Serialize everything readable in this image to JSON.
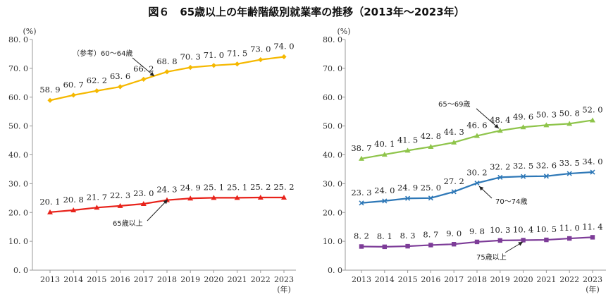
{
  "title": "図６　65歳以上の年齢階級別就業率の推移（2013年～2023年）",
  "colors": {
    "s60_64": "#f5b800",
    "s65plus": "#e8221a",
    "s65_69": "#8ec44a",
    "s70_74": "#2e78b7",
    "s75plus": "#7d3c98",
    "axis": "#999999"
  },
  "chart_data": [
    {
      "type": "line",
      "unit_label": "(%)",
      "x_unit_label": "(年)",
      "categories": [
        "2013",
        "2014",
        "2015",
        "2016",
        "2017",
        "2018",
        "2019",
        "2020",
        "2021",
        "2022",
        "2023"
      ],
      "ylim": [
        0,
        80
      ],
      "yticks": [
        "0. 0",
        "10. 0",
        "20. 0",
        "30. 0",
        "40. 0",
        "50. 0",
        "60. 0",
        "70. 0",
        "80. 0"
      ],
      "series": [
        {
          "name": "（参考）60～64歳",
          "color_key": "s60_64",
          "marker": "diamond",
          "values": [
            58.9,
            60.7,
            62.2,
            63.6,
            66.2,
            68.8,
            70.3,
            71.0,
            71.5,
            73.0,
            74.0
          ],
          "labels": [
            "58. 9",
            "60. 7",
            "62. 2",
            "63. 6",
            "66. 2",
            "68. 8",
            "70. 3",
            "71. 0",
            "71. 5",
            "73. 0",
            "74. 0"
          ]
        },
        {
          "name": "65歳以上",
          "color_key": "s65plus",
          "marker": "triangle",
          "values": [
            20.1,
            20.8,
            21.7,
            22.3,
            23.0,
            24.3,
            24.9,
            25.1,
            25.1,
            25.2,
            25.2
          ],
          "labels": [
            "20. 1",
            "20. 8",
            "21. 7",
            "22. 3",
            "23. 0",
            "24. 3",
            "24. 9",
            "25. 1",
            "25. 1",
            "25. 2",
            "25. 2"
          ]
        }
      ]
    },
    {
      "type": "line",
      "unit_label": "(%)",
      "x_unit_label": "(年)",
      "categories": [
        "2013",
        "2014",
        "2015",
        "2016",
        "2017",
        "2018",
        "2019",
        "2020",
        "2021",
        "2022",
        "2023"
      ],
      "ylim": [
        0,
        80
      ],
      "yticks": [
        "0. 0",
        "10. 0",
        "20. 0",
        "30. 0",
        "40. 0",
        "50. 0",
        "60. 0",
        "70. 0",
        "80. 0"
      ],
      "series": [
        {
          "name": "65～69歳",
          "color_key": "s65_69",
          "marker": "triangle",
          "values": [
            38.7,
            40.1,
            41.5,
            42.8,
            44.3,
            46.6,
            48.4,
            49.6,
            50.3,
            50.8,
            52.0
          ],
          "labels": [
            "38. 7",
            "40. 1",
            "41. 5",
            "42. 8",
            "44. 3",
            "46. 6",
            "48. 4",
            "49. 6",
            "50. 3",
            "50. 8",
            "52. 0"
          ]
        },
        {
          "name": "70～74歳",
          "color_key": "s70_74",
          "marker": "x",
          "values": [
            23.3,
            24.0,
            24.9,
            25.0,
            27.2,
            30.2,
            32.2,
            32.5,
            32.6,
            33.5,
            34.0
          ],
          "labels": [
            "23. 3",
            "24. 0",
            "24. 9",
            "25. 0",
            "27. 2",
            "30. 2",
            "32. 2",
            "32. 5",
            "32. 6",
            "33. 5",
            "34. 0"
          ]
        },
        {
          "name": "75歳以上",
          "color_key": "s75plus",
          "marker": "square",
          "values": [
            8.2,
            8.1,
            8.3,
            8.7,
            9.0,
            9.8,
            10.3,
            10.4,
            10.5,
            11.0,
            11.4
          ],
          "labels": [
            "8. 2",
            "8. 1",
            "8. 3",
            "8. 7",
            "9. 0",
            "9. 8",
            "10. 3",
            "10. 4",
            "10. 5",
            "11. 0",
            "11. 4"
          ]
        }
      ]
    }
  ]
}
